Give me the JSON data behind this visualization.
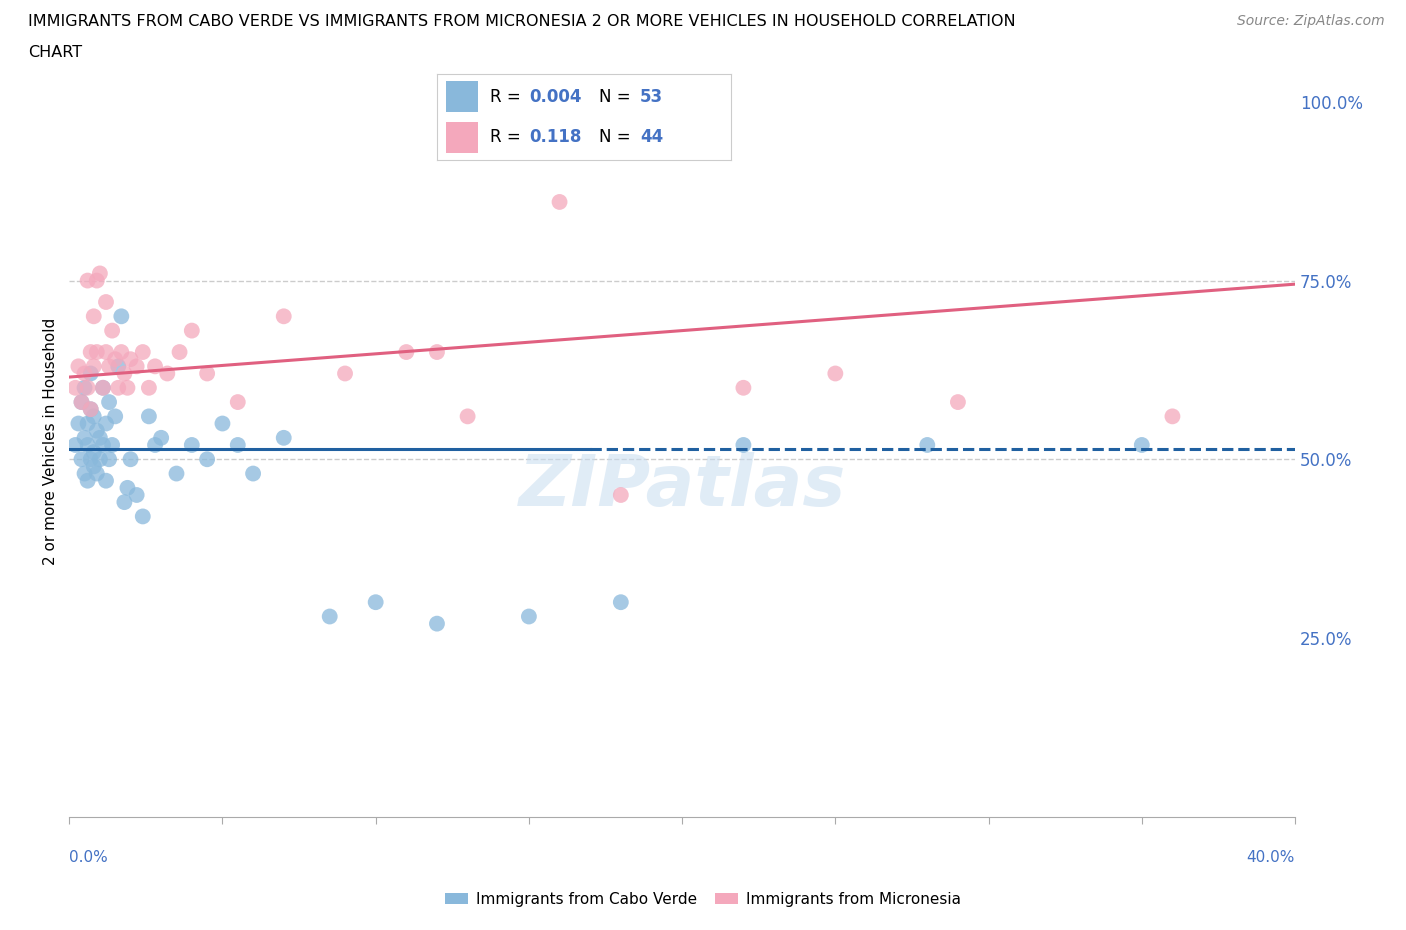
{
  "title_line1": "IMMIGRANTS FROM CABO VERDE VS IMMIGRANTS FROM MICRONESIA 2 OR MORE VEHICLES IN HOUSEHOLD CORRELATION",
  "title_line2": "CHART",
  "source": "Source: ZipAtlas.com",
  "ylabel": "2 or more Vehicles in Household",
  "legend_cabo_R": "0.004",
  "legend_cabo_N": "53",
  "legend_micro_R": "0.118",
  "legend_micro_N": "44",
  "cabo_color": "#89b8db",
  "micro_color": "#f4a8bc",
  "cabo_line_color": "#2060a0",
  "micro_line_color": "#e06080",
  "watermark": "ZIPatlas",
  "cabo_verde_x": [
    0.002,
    0.003,
    0.004,
    0.004,
    0.005,
    0.005,
    0.005,
    0.006,
    0.006,
    0.006,
    0.007,
    0.007,
    0.007,
    0.008,
    0.008,
    0.008,
    0.009,
    0.009,
    0.01,
    0.01,
    0.011,
    0.011,
    0.012,
    0.012,
    0.013,
    0.013,
    0.014,
    0.015,
    0.016,
    0.017,
    0.018,
    0.019,
    0.02,
    0.022,
    0.024,
    0.026,
    0.028,
    0.03,
    0.035,
    0.04,
    0.045,
    0.05,
    0.055,
    0.06,
    0.07,
    0.085,
    0.1,
    0.12,
    0.15,
    0.18,
    0.22,
    0.28,
    0.35
  ],
  "cabo_verde_y": [
    0.52,
    0.55,
    0.5,
    0.58,
    0.48,
    0.53,
    0.6,
    0.52,
    0.55,
    0.47,
    0.5,
    0.57,
    0.62,
    0.51,
    0.56,
    0.49,
    0.54,
    0.48,
    0.5,
    0.53,
    0.52,
    0.6,
    0.55,
    0.47,
    0.5,
    0.58,
    0.52,
    0.56,
    0.63,
    0.7,
    0.44,
    0.46,
    0.5,
    0.45,
    0.42,
    0.56,
    0.52,
    0.53,
    0.48,
    0.52,
    0.5,
    0.55,
    0.52,
    0.48,
    0.53,
    0.28,
    0.3,
    0.27,
    0.28,
    0.3,
    0.52,
    0.52,
    0.52
  ],
  "micronesia_x": [
    0.002,
    0.003,
    0.004,
    0.005,
    0.006,
    0.006,
    0.007,
    0.007,
    0.008,
    0.008,
    0.009,
    0.009,
    0.01,
    0.011,
    0.012,
    0.012,
    0.013,
    0.014,
    0.015,
    0.016,
    0.017,
    0.018,
    0.019,
    0.02,
    0.022,
    0.024,
    0.026,
    0.028,
    0.032,
    0.036,
    0.04,
    0.045,
    0.055,
    0.07,
    0.09,
    0.12,
    0.16,
    0.22,
    0.29,
    0.36,
    0.11,
    0.13,
    0.18,
    0.25
  ],
  "micronesia_y": [
    0.6,
    0.63,
    0.58,
    0.62,
    0.75,
    0.6,
    0.65,
    0.57,
    0.63,
    0.7,
    0.75,
    0.65,
    0.76,
    0.6,
    0.65,
    0.72,
    0.63,
    0.68,
    0.64,
    0.6,
    0.65,
    0.62,
    0.6,
    0.64,
    0.63,
    0.65,
    0.6,
    0.63,
    0.62,
    0.65,
    0.68,
    0.62,
    0.58,
    0.7,
    0.62,
    0.65,
    0.86,
    0.6,
    0.58,
    0.56,
    0.65,
    0.56,
    0.45,
    0.62
  ],
  "cabo_line_x0": 0.0,
  "cabo_line_x1": 0.4,
  "cabo_line_y0": 0.515,
  "cabo_line_y1": 0.515,
  "cabo_line_solid_x1": 0.17,
  "micro_line_x0": 0.0,
  "micro_line_x1": 0.4,
  "micro_line_y0": 0.615,
  "micro_line_y1": 0.745,
  "xmin": 0.0,
  "xmax": 0.4,
  "ymin": 0.0,
  "ymax": 1.05
}
